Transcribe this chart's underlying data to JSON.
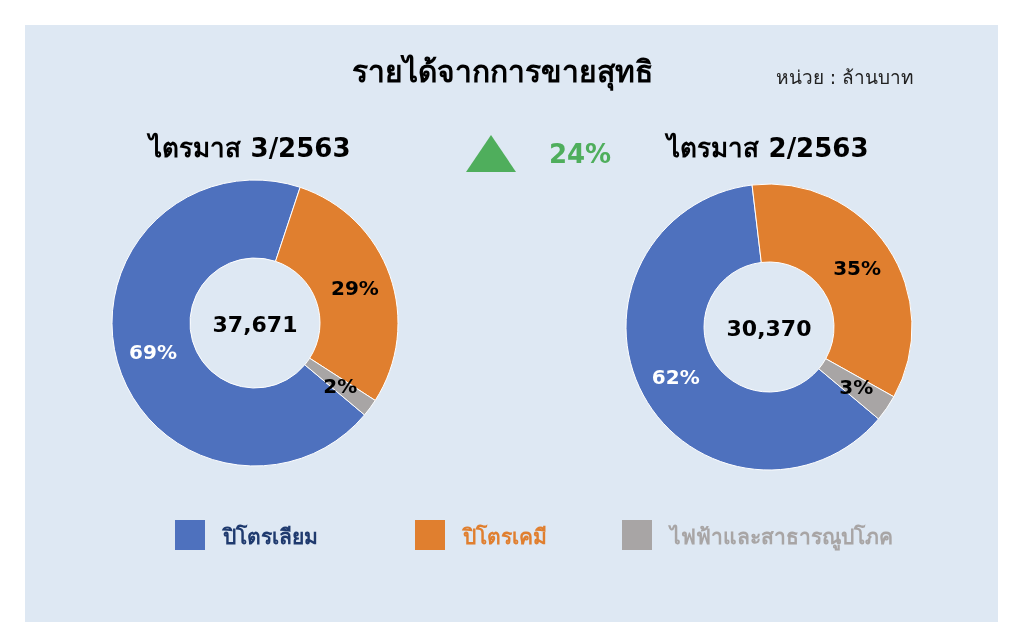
{
  "chart_data": [
    {
      "type": "other",
      "title": "รายได้จากการขายสุทธิ",
      "annotations": [
        "หน่วย : ล้านบาท",
        "24%"
      ]
    },
    {
      "type": "donut",
      "title": "ไตรมาส 3/2563",
      "categories": [
        "ปิโตรเลียม",
        "ปิโตรเคมี",
        "ไฟฟ้าและสาธารณูปโภค"
      ],
      "values": [
        69,
        29,
        2
      ],
      "colors": [
        "#4e71be",
        "#e07f2f",
        "#a8a5a5"
      ],
      "value_labels": [
        "69%",
        "29%",
        "2%"
      ],
      "legend": "bottom",
      "annotations": [
        "37,671"
      ]
    },
    {
      "type": "donut",
      "title": "ไตรมาส 2/2563",
      "categories": [
        null,
        null,
        null
      ],
      "values": [
        62,
        35,
        3
      ],
      "colors": [
        "#4e71be",
        "#e07f2f",
        "#a8a5a5"
      ],
      "value_labels": [
        "62%",
        "35%",
        "3%"
      ],
      "annotations": [
        "30,370"
      ]
    }
  ]
}
